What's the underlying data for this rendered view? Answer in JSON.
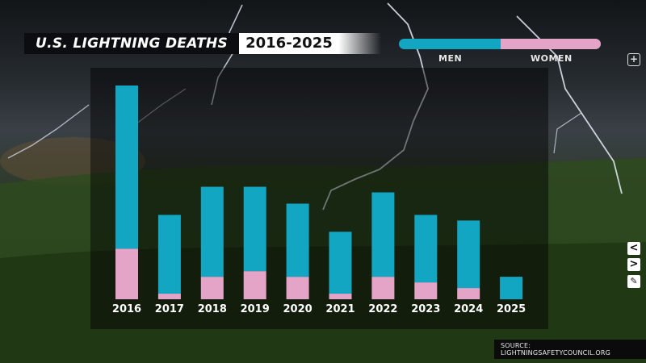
{
  "header": {
    "title": "U.S. LIGHTNING DEATHS",
    "range": "2016-2025"
  },
  "legend": {
    "men_label": "MEN",
    "women_label": "WOMEN",
    "men_color": "#12a6c2",
    "women_color": "#e4a4c8"
  },
  "controls": {
    "zoom_icon": "plus-circle-icon",
    "prev_icon": "chevron-left-icon",
    "next_icon": "chevron-right-icon",
    "edit_icon": "pencil-icon"
  },
  "source": "SOURCE: LIGHTNINGSAFETYCOUNCIL.ORG",
  "chart_data": {
    "type": "bar",
    "stacked": true,
    "categories": [
      "2016",
      "2017",
      "2018",
      "2019",
      "2020",
      "2021",
      "2022",
      "2023",
      "2024",
      "2025"
    ],
    "series": [
      {
        "name": "WOMEN",
        "color": "#e4a4c8",
        "values": [
          9,
          1,
          4,
          5,
          4,
          1,
          4,
          3,
          2,
          0
        ]
      },
      {
        "name": "MEN",
        "color": "#12a6c2",
        "values": [
          29,
          14,
          16,
          15,
          13,
          11,
          15,
          12,
          12,
          4
        ]
      }
    ],
    "ylim": [
      0,
      40
    ]
  }
}
